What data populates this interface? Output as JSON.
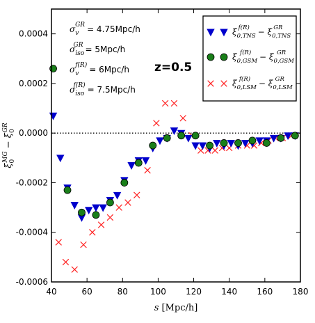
{
  "chart_data": {
    "type": "scatter",
    "title": "",
    "xlabel": "s [Mpc/h]",
    "ylabel": "ξ0^MG − ξ0^GR",
    "xlim": [
      40,
      180
    ],
    "ylim": [
      -0.0006,
      0.0005
    ],
    "xticks": [
      "40",
      "60",
      "80",
      "100",
      "120",
      "140",
      "160",
      "180"
    ],
    "yticks": [
      "0.0004",
      "0.0002",
      "0.0000",
      "-0.0002",
      "-0.0004",
      "-0.0006"
    ],
    "reference_line": {
      "y": 0,
      "style": "dotted"
    },
    "annotations": [
      {
        "symbol": "σ",
        "sup": "GR",
        "sub": "v",
        "value": "= 4.75Mpc/h"
      },
      {
        "symbol": "σ",
        "sup": "GR",
        "sub": "iso",
        "value": "= 5Mpc/h"
      },
      {
        "symbol": "σ",
        "sup": "f(R)",
        "sub": "v",
        "value": "= 6Mpc/h"
      },
      {
        "symbol": "σ",
        "sup": "f(R)",
        "sub": "iso",
        "value": "= 7.5Mpc/h"
      }
    ],
    "redshift_label": "z=0.5",
    "legend_position": "top-right",
    "series": [
      {
        "name": "ξ0,TNS^f(R) − ξ0,TNS^GR",
        "marker": "triangle-down",
        "color": "#0000cc",
        "x": [
          41,
          45,
          49,
          53,
          57,
          61,
          65,
          69,
          73,
          77,
          81,
          85,
          89,
          93,
          97,
          101,
          105,
          109,
          113,
          117,
          121,
          125,
          129,
          133,
          137,
          141,
          145,
          149,
          153,
          157,
          161,
          165,
          169,
          173,
          177
        ],
        "y": [
          7e-05,
          -0.0001,
          -0.00022,
          -0.00029,
          -0.00034,
          -0.00031,
          -0.0003,
          -0.0003,
          -0.00027,
          -0.00025,
          -0.00019,
          -0.00013,
          -0.00011,
          -0.00011,
          -6e-05,
          -3e-05,
          -2e-05,
          1e-05,
          0.0,
          -2e-05,
          -5e-05,
          -5e-05,
          -6e-05,
          -4e-05,
          -5e-05,
          -4e-05,
          -5e-05,
          -4e-05,
          -4e-05,
          -3e-05,
          -3e-05,
          -2e-05,
          -2e-05,
          -1e-05,
          -1e-05
        ]
      },
      {
        "name": "ξ0,GSM^f(R) − ξ0,GSM^GR",
        "marker": "circle",
        "color": "#1a7f1a",
        "x": [
          41,
          49,
          57,
          65,
          73,
          81,
          89,
          97,
          105,
          113,
          121,
          129,
          137,
          145,
          153,
          161,
          169,
          177
        ],
        "y": [
          0.00026,
          -0.00023,
          -0.00032,
          -0.00033,
          -0.00028,
          -0.0002,
          -0.00012,
          -5e-05,
          -2e-05,
          -1e-05,
          -1e-05,
          -5e-05,
          -4e-05,
          -4e-05,
          -3e-05,
          -4e-05,
          -2e-05,
          -1e-05
        ]
      },
      {
        "name": "ξ0,LSM^f(R) − ξ0,LSM^GR",
        "marker": "x",
        "color": "#ff2222",
        "x": [
          44,
          48,
          53,
          58,
          63,
          68,
          73,
          78,
          83,
          88,
          94,
          99,
          104,
          109,
          114,
          119,
          124,
          128,
          132,
          136,
          140,
          145,
          150,
          154,
          158,
          162,
          166,
          170,
          175
        ],
        "y": [
          -0.00044,
          -0.00052,
          -0.00055,
          -0.00045,
          -0.0004,
          -0.00037,
          -0.00034,
          -0.0003,
          -0.00028,
          -0.00025,
          -0.00015,
          4e-05,
          0.00012,
          0.00012,
          6e-05,
          -1e-05,
          -7e-05,
          -7e-05,
          -7e-05,
          -6e-05,
          -6e-05,
          -5e-05,
          -5e-05,
          -5e-05,
          -4e-05,
          -3e-05,
          -2e-05,
          -2e-05,
          -1e-05
        ]
      }
    ]
  }
}
